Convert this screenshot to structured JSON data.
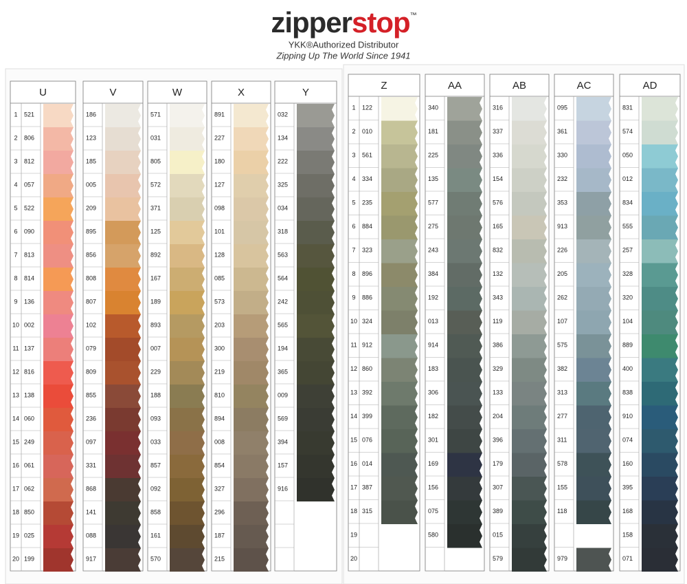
{
  "header": {
    "logo_left": "zipper",
    "logo_right": "stop",
    "trademark": "™",
    "distributor": "YKK®Authorized Distributor",
    "tagline": "Zipping Up The World Since 1941"
  },
  "panels": [
    {
      "row_numbers": [
        1,
        2,
        3,
        4,
        5,
        6,
        7,
        8,
        9,
        10,
        11,
        12,
        13,
        14,
        15,
        16,
        17,
        18,
        19,
        20
      ],
      "columns": [
        {
          "label": "U",
          "codes": [
            "521",
            "806",
            "812",
            "057",
            "522",
            "090",
            "813",
            "814",
            "136",
            "002",
            "137",
            "816",
            "138",
            "060",
            "249",
            "061",
            "062",
            "850",
            "025",
            "199"
          ],
          "colors": [
            "#f7d9c4",
            "#f3b8a6",
            "#f2a9a0",
            "#f0a985",
            "#f5a55a",
            "#f19078",
            "#ee8f83",
            "#f59a55",
            "#ef8a80",
            "#ed8193",
            "#ec7f7a",
            "#ee5b4e",
            "#ea4c3a",
            "#e05a3d",
            "#d9624c",
            "#d7665a",
            "#d06a4e",
            "#b54a35",
            "#b53a35",
            "#a0352d"
          ]
        },
        {
          "label": "V",
          "codes": [
            "186",
            "123",
            "185",
            "005",
            "209",
            "895",
            "856",
            "808",
            "807",
            "102",
            "079",
            "809",
            "855",
            "236",
            "097",
            "331",
            "868",
            "141",
            "088",
            "917"
          ],
          "colors": [
            "#ece9e2",
            "#e6ddd2",
            "#e7d2c0",
            "#e8c5ae",
            "#e9c2a0",
            "#d39a5a",
            "#d6a36a",
            "#e08a40",
            "#d98330",
            "#b85a2c",
            "#a34b2a",
            "#a9522e",
            "#8a4a38",
            "#7a3a30",
            "#7a3030",
            "#6e3232",
            "#4a3a32",
            "#3e3a32",
            "#3a3634",
            "#4a3c36"
          ]
        },
        {
          "label": "W",
          "codes": [
            "571",
            "031",
            "805",
            "572",
            "371",
            "125",
            "892",
            "167",
            "189",
            "893",
            "007",
            "229",
            "188",
            "093",
            "033",
            "857",
            "092",
            "858",
            "161",
            "570"
          ],
          "colors": [
            "#f4f2ec",
            "#efebe0",
            "#f6f0c8",
            "#e2d9bc",
            "#d9cfb0",
            "#e2c99a",
            "#d9b884",
            "#ccad72",
            "#c9a45c",
            "#b59a62",
            "#b59357",
            "#a38a58",
            "#8a7c52",
            "#8a7248",
            "#8f6e48",
            "#8a6a3c",
            "#7e6234",
            "#6e5430",
            "#5e4a30",
            "#55463a"
          ]
        },
        {
          "label": "X",
          "codes": [
            "891",
            "227",
            "180",
            "127",
            "098",
            "101",
            "128",
            "085",
            "573",
            "203",
            "300",
            "219",
            "810",
            "894",
            "008",
            "854",
            "327",
            "296",
            "187",
            "215"
          ],
          "colors": [
            "#f4e8d0",
            "#f0d8b8",
            "#ebd0a8",
            "#e0ceac",
            "#dbc8a8",
            "#d6c6a6",
            "#d8c49e",
            "#ccb890",
            "#c2ae88",
            "#b69c78",
            "#a88e70",
            "#a08868",
            "#948460",
            "#8c7c62",
            "#90806a",
            "#8a7a66",
            "#807060",
            "#6e6054",
            "#665a50",
            "#5e524a"
          ]
        },
        {
          "label": "Y",
          "codes": [
            "032",
            "134",
            "222",
            "325",
            "034",
            "318",
            "563",
            "564",
            "242",
            "565",
            "194",
            "365",
            "009",
            "569",
            "394",
            "157",
            "916",
            null,
            null,
            null
          ],
          "colors": [
            "#9a9a94",
            "#8a8a86",
            "#7a7a74",
            "#6e6e66",
            "#65665c",
            "#5a5c4c",
            "#56563e",
            "#505234",
            "#4e5036",
            "#535438",
            "#484a36",
            "#444634",
            "#3e4036",
            "#3a3c34",
            "#383a30",
            "#34362e",
            "#30322c",
            null,
            null,
            null
          ]
        }
      ]
    },
    {
      "row_numbers": [
        1,
        2,
        3,
        4,
        5,
        6,
        7,
        8,
        9,
        10,
        11,
        12,
        13,
        14,
        15,
        16,
        17,
        18,
        19,
        20
      ],
      "columns": [
        {
          "label": "Z",
          "codes": [
            "122",
            "010",
            "561",
            "334",
            "235",
            "884",
            "323",
            "896",
            "886",
            "324",
            "912",
            "860",
            "392",
            "399",
            "076",
            "014",
            "387",
            "315",
            null,
            null
          ],
          "colors": [
            "#f6f4e4",
            "#c6c49a",
            "#b8b690",
            "#a9a884",
            "#a4a070",
            "#9a986e",
            "#9aa08a",
            "#8c8a6a",
            "#858a72",
            "#7d806a",
            "#8a988c",
            "#7c8474",
            "#6e7a6c",
            "#5e6a5e",
            "#586458",
            "#4e5852",
            "#505850",
            "#4a524a",
            null,
            null
          ]
        },
        {
          "label": "AA",
          "codes": [
            "340",
            "181",
            "225",
            "135",
            "577",
            "275",
            "243",
            "384",
            "192",
            "013",
            "914",
            "183",
            "306",
            "182",
            "301",
            "169",
            "156",
            "075",
            "580",
            null
          ],
          "colors": [
            "#9fa39a",
            "#8a9088",
            "#808882",
            "#7a8a82",
            "#707c74",
            "#6e7870",
            "#6c7872",
            "#626c66",
            "#5c6a64",
            "#585e56",
            "#505a54",
            "#4a5450",
            "#4a5452",
            "#444c4a",
            "#3e4644",
            "#2e3444",
            "#343a3c",
            "#2e3634",
            "#2a302e",
            null
          ]
        },
        {
          "label": "AB",
          "codes": [
            "316",
            "337",
            "336",
            "154",
            "576",
            "165",
            "832",
            "132",
            "343",
            "119",
            "386",
            "329",
            "133",
            "204",
            "396",
            "179",
            "307",
            "389",
            "015",
            "579"
          ],
          "colors": [
            "#e4e6e2",
            "#dcdcd4",
            "#d6d8ce",
            "#cdd0c6",
            "#c4c8be",
            "#c9c6b6",
            "#b8bcb0",
            "#b6beb8",
            "#aab6b2",
            "#a6aca4",
            "#8e9a94",
            "#7e8a84",
            "#7a8482",
            "#6e7c7a",
            "#647072",
            "#5a6466",
            "#4a5654",
            "#3e4c48",
            "#36403e",
            "#323a38"
          ]
        },
        {
          "label": "AC",
          "codes": [
            "095",
            "361",
            "330",
            "232",
            "353",
            "913",
            "226",
            "205",
            "262",
            "107",
            "575",
            "382",
            "313",
            "277",
            "311",
            "578",
            "155",
            "118",
            null,
            "979"
          ],
          "colors": [
            "#c6d4e0",
            "#bcc6d8",
            "#aebcd0",
            "#a6b8c8",
            "#8ea0a6",
            "#90a0a0",
            "#a4b4b8",
            "#9cb2bc",
            "#94aab4",
            "#8ea6b0",
            "#7a9298",
            "#6c8494",
            "#5a7a80",
            "#4e6470",
            "#506470",
            "#3e5258",
            "#3e505a",
            "#364648",
            null,
            "#4e5452"
          ]
        },
        {
          "label": "AD",
          "codes": [
            "831",
            "574",
            "050",
            "012",
            "834",
            "555",
            "257",
            "328",
            "320",
            "104",
            "889",
            "400",
            "838",
            "910",
            "074",
            "160",
            "395",
            "168",
            "158",
            "071"
          ],
          "colors": [
            "#dce4d8",
            "#cfdcd2",
            "#8ecbd4",
            "#7ab8c8",
            "#6ab0c6",
            "#6aa8b4",
            "#8cbcb8",
            "#5a9a92",
            "#4e8c86",
            "#4e8a7e",
            "#3e8a6e",
            "#3a7a80",
            "#2e6a76",
            "#2a5c7a",
            "#2e5a6e",
            "#2a4a62",
            "#2a3e56",
            "#283444",
            "#2a3038",
            "#2a2e36"
          ]
        }
      ]
    }
  ]
}
